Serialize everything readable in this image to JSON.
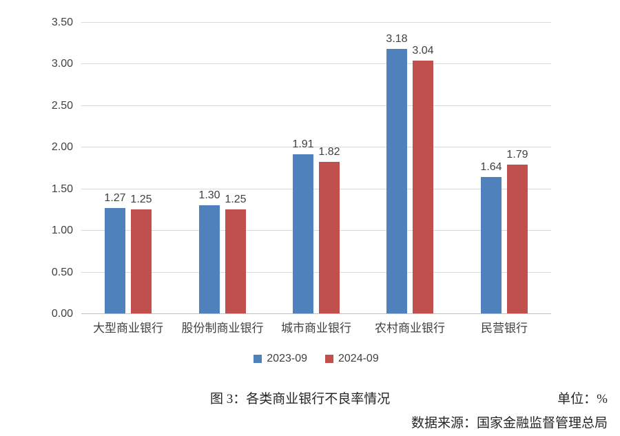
{
  "meta": {
    "caption": "图 3：各类商业银行不良率情况",
    "unit_label": "单位：%",
    "source": "数据来源：国家金融监督管理总局"
  },
  "chart_data": {
    "type": "bar",
    "title": "图 3：各类商业银行不良率情况",
    "unit": "%",
    "categories": [
      "大型商业银行",
      "股份制商业银行",
      "城市商业银行",
      "农村商业银行",
      "民营银行"
    ],
    "series": [
      {
        "name": "2023-09",
        "color": "#4F81BD",
        "values": [
          1.27,
          1.3,
          1.91,
          3.18,
          1.64
        ]
      },
      {
        "name": "2024-09",
        "color": "#C0504D",
        "values": [
          1.25,
          1.25,
          1.82,
          3.04,
          1.79
        ]
      }
    ],
    "ylim": [
      0,
      3.5
    ],
    "ytick_step": 0.5,
    "ytick_labels": [
      "0.00",
      "0.50",
      "1.00",
      "1.50",
      "2.00",
      "2.50",
      "3.00",
      "3.50"
    ],
    "grid": true,
    "legend_position": "bottom",
    "data_labels": true,
    "colors": {
      "grid": "#D9D9D9",
      "axis": "#BFBFBF",
      "chart_text": "#404040"
    }
  }
}
